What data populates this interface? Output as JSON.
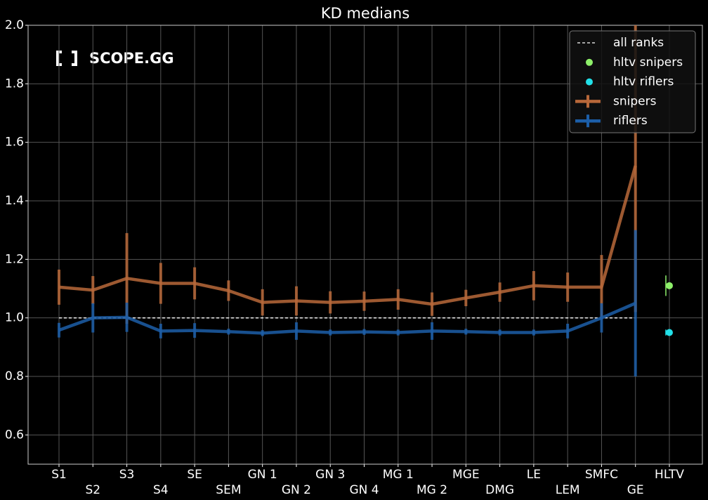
{
  "chart_data": {
    "type": "errorbar_line",
    "title": "KD medians",
    "logo": "SCOPE.GG",
    "categories": [
      "S1",
      "S2",
      "S3",
      "S4",
      "SE",
      "SEM",
      "GN 1",
      "GN 2",
      "GN 3",
      "GN 4",
      "MG 1",
      "MG 2",
      "MGE",
      "DMG",
      "LE",
      "LEM",
      "SMFC",
      "GE",
      "HLTV"
    ],
    "ylim": [
      0.5,
      2.0
    ],
    "yticks": [
      0.6,
      0.8,
      {
        "value": 1.0,
        "label": "1.0"
      },
      1.2,
      1.4,
      1.6,
      1.8,
      {
        "value": 2.0,
        "label": "2.0"
      }
    ],
    "grid": true,
    "legend": "upper right",
    "reference_line": {
      "name": "all ranks",
      "value": 1.0,
      "color": "#ffffff"
    },
    "points": [
      {
        "name": "hltv snipers",
        "color": "#8ef06a",
        "values": [
          null,
          null,
          null,
          null,
          null,
          null,
          null,
          null,
          null,
          null,
          null,
          null,
          null,
          null,
          null,
          null,
          null,
          null,
          1.11
        ],
        "errors": [
          null,
          null,
          null,
          null,
          null,
          null,
          null,
          null,
          null,
          null,
          null,
          null,
          null,
          null,
          null,
          null,
          null,
          null,
          0.035
        ]
      },
      {
        "name": "hltv riflers",
        "color": "#22e0e8",
        "values": [
          null,
          null,
          null,
          null,
          null,
          null,
          null,
          null,
          null,
          null,
          null,
          null,
          null,
          null,
          null,
          null,
          null,
          null,
          0.95
        ],
        "errors": [
          null,
          null,
          null,
          null,
          null,
          null,
          null,
          null,
          null,
          null,
          null,
          null,
          null,
          null,
          null,
          null,
          null,
          null,
          0.01
        ]
      }
    ],
    "series": [
      {
        "name": "snipers",
        "color": "#b8683a",
        "values": [
          1.105,
          1.095,
          1.135,
          1.118,
          1.118,
          1.093,
          1.053,
          1.058,
          1.053,
          1.057,
          1.063,
          1.047,
          1.068,
          1.088,
          1.11,
          1.105,
          1.105,
          1.52,
          null
        ],
        "errors": [
          0.06,
          0.048,
          0.155,
          0.07,
          0.055,
          0.035,
          0.045,
          0.05,
          0.038,
          0.033,
          0.035,
          0.04,
          0.028,
          0.033,
          0.05,
          0.05,
          0.11,
          0.5,
          null
        ]
      },
      {
        "name": "riflers",
        "color": "#1c5ea8",
        "values": [
          0.958,
          1.0,
          1.002,
          0.955,
          0.957,
          0.953,
          0.948,
          0.955,
          0.95,
          0.952,
          0.95,
          0.955,
          0.953,
          0.95,
          0.95,
          0.955,
          1.0,
          1.05,
          null
        ],
        "errors": [
          0.025,
          0.05,
          0.05,
          0.025,
          0.025,
          0.01,
          0.01,
          0.03,
          0.01,
          0.01,
          0.01,
          0.03,
          0.01,
          0.01,
          0.01,
          0.025,
          0.05,
          0.25,
          null
        ]
      }
    ]
  }
}
